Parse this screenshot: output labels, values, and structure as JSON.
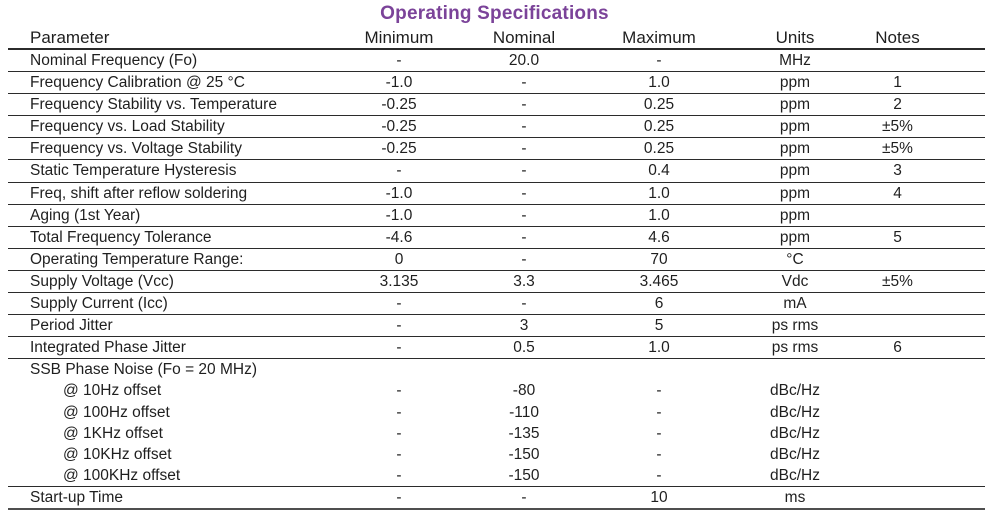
{
  "title": "Operating Specifications",
  "title_color": "#7B4399",
  "table": {
    "columns": [
      {
        "key": "param",
        "label": "Parameter"
      },
      {
        "key": "min",
        "label": "Minimum"
      },
      {
        "key": "nom",
        "label": "Nominal"
      },
      {
        "key": "max",
        "label": "Maximum"
      },
      {
        "key": "units",
        "label": "Units"
      },
      {
        "key": "notes",
        "label": "Notes"
      }
    ],
    "rows": [
      {
        "type": "normal",
        "param": "Nominal Frequency (Fo)",
        "min": "-",
        "nom": "20.0",
        "max": "-",
        "units": "MHz",
        "notes": ""
      },
      {
        "type": "normal",
        "param": "Frequency Calibration @ 25 °C",
        "min": "-1.0",
        "nom": "-",
        "max": "1.0",
        "units": "ppm",
        "notes": "1"
      },
      {
        "type": "normal",
        "param": "Frequency Stability vs. Temperature",
        "min": "-0.25",
        "nom": "-",
        "max": "0.25",
        "units": "ppm",
        "notes": "2"
      },
      {
        "type": "normal",
        "param": "Frequency vs. Load Stability",
        "min": "-0.25",
        "nom": "-",
        "max": "0.25",
        "units": "ppm",
        "notes": "±5%"
      },
      {
        "type": "normal",
        "param": "Frequency vs. Voltage Stability",
        "min": "-0.25",
        "nom": "-",
        "max": "0.25",
        "units": "ppm",
        "notes": "±5%"
      },
      {
        "type": "normal",
        "param": "Static Temperature Hysteresis",
        "min": "-",
        "nom": "-",
        "max": "0.4",
        "units": "ppm",
        "notes": "3"
      },
      {
        "type": "normal",
        "param": "Freq, shift after reflow soldering",
        "min": "-1.0",
        "nom": "-",
        "max": "1.0",
        "units": "ppm",
        "notes": "4"
      },
      {
        "type": "normal",
        "param": "Aging (1st Year)",
        "min": "-1.0",
        "nom": "-",
        "max": "1.0",
        "units": "ppm",
        "notes": ""
      },
      {
        "type": "normal",
        "param": "Total Frequency Tolerance",
        "min": "-4.6",
        "nom": "-",
        "max": "4.6",
        "units": "ppm",
        "notes": "5"
      },
      {
        "type": "normal",
        "param": "Operating Temperature Range:",
        "min": "0",
        "nom": "-",
        "max": "70",
        "units": "°C",
        "notes": ""
      },
      {
        "type": "normal",
        "param": "Supply Voltage (Vcc)",
        "min": "3.135",
        "nom": "3.3",
        "max": "3.465",
        "units": "Vdc",
        "notes": "±5%"
      },
      {
        "type": "normal",
        "param": "Supply Current (Icc)",
        "min": "-",
        "nom": "-",
        "max": "6",
        "units": "mA",
        "notes": ""
      },
      {
        "type": "normal",
        "param": "Period Jitter",
        "min": "-",
        "nom": "3",
        "max": "5",
        "units": "ps rms",
        "notes": ""
      },
      {
        "type": "normal",
        "param": "Integrated Phase Jitter",
        "min": "-",
        "nom": "0.5",
        "max": "1.0",
        "units": "ps rms",
        "notes": "6"
      },
      {
        "type": "group",
        "param": "SSB Phase Noise (Fo = 20 MHz)",
        "min": "",
        "nom": "",
        "max": "",
        "units": "",
        "notes": ""
      },
      {
        "type": "sub",
        "param": "@ 10Hz offset",
        "min": "-",
        "nom": "-80",
        "max": "-",
        "units": "dBc/Hz",
        "notes": ""
      },
      {
        "type": "sub",
        "param": "@ 100Hz offset",
        "min": "-",
        "nom": "-110",
        "max": "-",
        "units": "dBc/Hz",
        "notes": ""
      },
      {
        "type": "sub",
        "param": "@ 1KHz offset",
        "min": "-",
        "nom": "-135",
        "max": "-",
        "units": "dBc/Hz",
        "notes": ""
      },
      {
        "type": "sub",
        "param": "@ 10KHz offset",
        "min": "-",
        "nom": "-150",
        "max": "-",
        "units": "dBc/Hz",
        "notes": ""
      },
      {
        "type": "sublast",
        "param": "@ 100KHz offset",
        "min": "-",
        "nom": "-150",
        "max": "-",
        "units": "dBc/Hz",
        "notes": ""
      },
      {
        "type": "last",
        "param": "Start-up Time",
        "min": "-",
        "nom": "-",
        "max": "10",
        "units": "ms",
        "notes": ""
      }
    ]
  }
}
